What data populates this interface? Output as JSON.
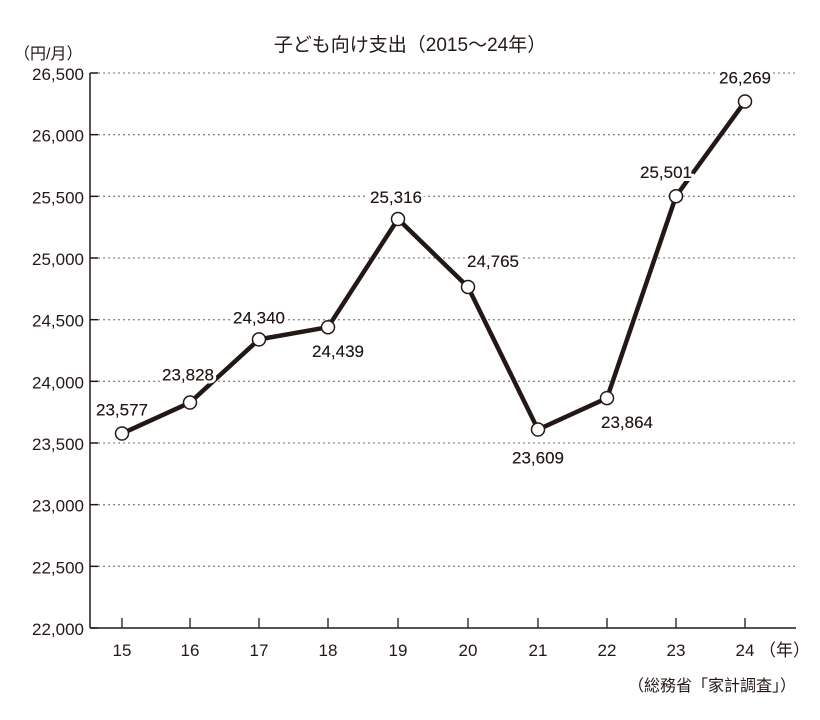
{
  "chart_data": {
    "type": "line",
    "title": "子ども向け支出（2015～24年）",
    "ylabel": "（円/月）",
    "xlabel": "（年）",
    "source": "（総務省「家計調査」）",
    "categories": [
      "15",
      "16",
      "17",
      "18",
      "19",
      "20",
      "21",
      "22",
      "23",
      "24"
    ],
    "series": [
      {
        "name": "子ども向け支出",
        "values": [
          23577,
          23828,
          24340,
          24439,
          25316,
          24765,
          23609,
          23864,
          25501,
          26269
        ]
      }
    ],
    "data_labels": [
      "23,577",
      "23,828",
      "24,340",
      "24,439",
      "25,316",
      "24,765",
      "23,609",
      "23,864",
      "25,501",
      "26,269"
    ],
    "yticks": [
      "22,000",
      "22,500",
      "23,000",
      "23,500",
      "24,000",
      "24,500",
      "25,000",
      "25,500",
      "26,000",
      "26,500"
    ],
    "ylim": [
      22000,
      26500
    ],
    "grid": "horizontal dotted",
    "legend": "none",
    "colors": {
      "line": "#231815",
      "marker_fill": "#ffffff",
      "grid": "#8a8a8a"
    }
  },
  "labels": {
    "title": "子ども向け支出（2015～24年）",
    "unit": "（円/月）",
    "source": "（総務省「家計調査」）",
    "x_unit": "（年）"
  }
}
